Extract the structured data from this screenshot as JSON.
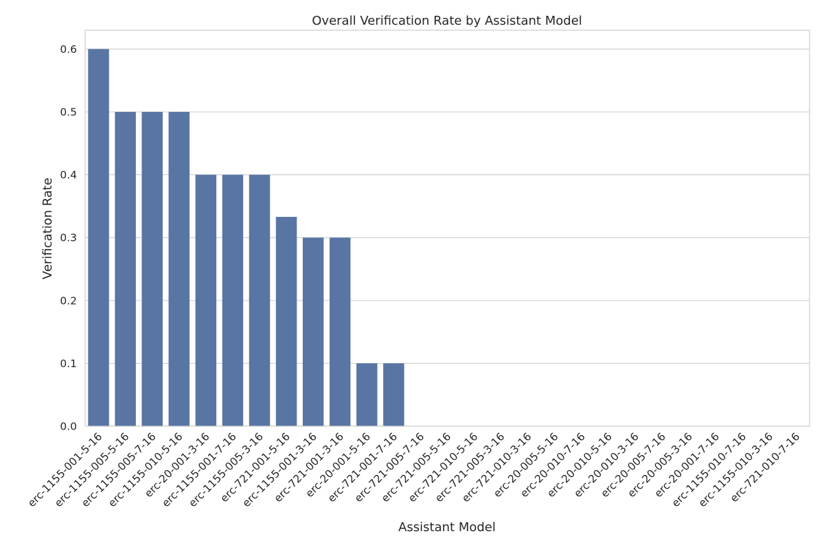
{
  "chart_data": {
    "type": "bar",
    "title": "Overall Verification Rate by Assistant Model",
    "xlabel": "Assistant Model",
    "ylabel": "Verification Rate",
    "ylim": [
      0,
      0.63
    ],
    "yticks": [
      0.0,
      0.1,
      0.2,
      0.3,
      0.4,
      0.5,
      0.6
    ],
    "ytick_labels": [
      "0.0",
      "0.1",
      "0.2",
      "0.3",
      "0.4",
      "0.5",
      "0.6"
    ],
    "grid": "horizontal",
    "bar_color": "#5875a4",
    "categories": [
      "erc-1155-001-5-16",
      "erc-1155-005-5-16",
      "erc-1155-005-7-16",
      "erc-1155-010-5-16",
      "erc-20-001-3-16",
      "erc-1155-001-7-16",
      "erc-1155-005-3-16",
      "erc-721-001-5-16",
      "erc-1155-001-3-16",
      "erc-721-001-3-16",
      "erc-20-001-5-16",
      "erc-721-001-7-16",
      "erc-721-005-7-16",
      "erc-721-005-5-16",
      "erc-721-010-5-16",
      "erc-721-005-3-16",
      "erc-721-010-3-16",
      "erc-20-005-5-16",
      "erc-20-010-7-16",
      "erc-20-010-5-16",
      "erc-20-010-3-16",
      "erc-20-005-7-16",
      "erc-20-005-3-16",
      "erc-20-001-7-16",
      "erc-1155-010-7-16",
      "erc-1155-010-3-16",
      "erc-721-010-7-16"
    ],
    "values": [
      0.6,
      0.5,
      0.5,
      0.5,
      0.4,
      0.4,
      0.4,
      0.333,
      0.3,
      0.3,
      0.1,
      0.1,
      0,
      0,
      0,
      0,
      0,
      0,
      0,
      0,
      0,
      0,
      0,
      0,
      0,
      0,
      0
    ]
  }
}
